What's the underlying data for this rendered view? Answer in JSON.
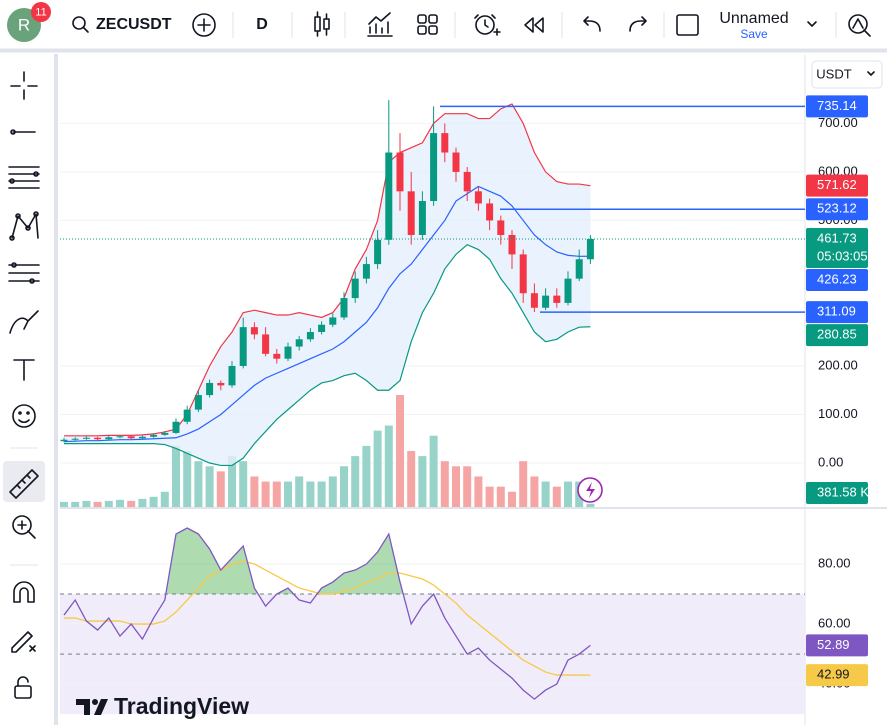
{
  "toolbar": {
    "avatar": "R",
    "badge": "11",
    "symbol": "ZECUSDT",
    "interval": "D",
    "layout_name": "Unnamed",
    "save": "Save"
  },
  "currency": "USDT",
  "logo": "TradingView",
  "chart_data": [
    {
      "type": "candlestick",
      "open": [
        45,
        48,
        50,
        52,
        49,
        53,
        55,
        51,
        54,
        58,
        62,
        85,
        110,
        140,
        165,
        160,
        200,
        280,
        265,
        225,
        215,
        240,
        255,
        270,
        285,
        300,
        340,
        380,
        410,
        460,
        640,
        560,
        470,
        540,
        680,
        640,
        600,
        560,
        535,
        500,
        470,
        430,
        350,
        320,
        345,
        330,
        380,
        420
      ],
      "high": [
        52,
        53,
        55,
        54,
        56,
        58,
        57,
        57,
        61,
        66,
        92,
        118,
        150,
        172,
        170,
        210,
        300,
        290,
        280,
        235,
        248,
        262,
        278,
        292,
        308,
        352,
        395,
        425,
        480,
        748,
        680,
        600,
        560,
        735.14,
        700,
        650,
        610,
        570,
        545,
        510,
        480,
        440,
        370,
        360,
        360,
        395,
        440,
        470
      ],
      "low": [
        43,
        46,
        48,
        47,
        47,
        51,
        49,
        50,
        52,
        56,
        60,
        80,
        105,
        135,
        150,
        155,
        195,
        255,
        220,
        205,
        210,
        232,
        250,
        265,
        280,
        295,
        330,
        370,
        400,
        450,
        520,
        450,
        460,
        530,
        620,
        580,
        540,
        520,
        480,
        450,
        400,
        330,
        311.09,
        315,
        320,
        325,
        375,
        410
      ],
      "close": [
        48,
        50,
        52,
        49,
        53,
        55,
        51,
        54,
        58,
        62,
        85,
        110,
        140,
        165,
        160,
        200,
        280,
        265,
        225,
        215,
        240,
        255,
        270,
        285,
        300,
        340,
        380,
        410,
        460,
        640,
        560,
        470,
        540,
        680,
        640,
        600,
        560,
        535,
        500,
        470,
        430,
        350,
        320,
        345,
        330,
        380,
        420,
        461.73
      ],
      "up_color": "#089981",
      "down_color": "#f23645",
      "bb_upper": [
        56,
        56,
        56,
        56,
        57,
        57,
        57,
        58,
        60,
        64,
        70,
        100,
        150,
        200,
        240,
        270,
        310,
        315,
        310,
        305,
        305,
        310,
        305,
        300,
        310,
        340,
        400,
        440,
        500,
        620,
        640,
        650,
        660,
        700,
        720,
        720,
        720,
        710,
        710,
        730,
        740,
        700,
        640,
        600,
        580,
        575,
        575,
        571.62
      ],
      "bb_middle": [
        44,
        45,
        46,
        46,
        47,
        48,
        48,
        49,
        50,
        51,
        52,
        60,
        70,
        85,
        100,
        120,
        140,
        160,
        175,
        185,
        195,
        205,
        215,
        225,
        235,
        250,
        270,
        290,
        320,
        360,
        390,
        410,
        440,
        470,
        500,
        540,
        555,
        570,
        560,
        550,
        530,
        500,
        470,
        450,
        435,
        428,
        426,
        426.23
      ],
      "bb_lower": [
        40,
        40,
        40,
        40,
        40,
        40,
        40,
        40,
        40,
        38,
        30,
        20,
        10,
        0,
        -5,
        -5,
        10,
        40,
        65,
        90,
        110,
        130,
        150,
        165,
        170,
        180,
        185,
        170,
        150,
        150,
        170,
        250,
        310,
        350,
        400,
        430,
        450,
        440,
        420,
        380,
        350,
        310,
        270,
        250,
        255,
        270,
        280,
        280.85
      ],
      "bb_colors": [
        "#f23645",
        "#2962ff",
        "#089981"
      ],
      "bb_fill": "#e3effd",
      "volume": {
        "values": [
          600,
          600,
          720,
          600,
          720,
          840,
          720,
          960,
          1200,
          1800,
          7200,
          6600,
          5400,
          4800,
          4200,
          6000,
          5400,
          3600,
          3000,
          3000,
          3000,
          3600,
          3000,
          3000,
          3600,
          4800,
          6000,
          7200,
          9000,
          9600,
          13200,
          6600,
          6000,
          8400,
          5400,
          4800,
          4800,
          3600,
          2400,
          2400,
          1800,
          5400,
          3600,
          3000,
          2400,
          3000,
          3000,
          381.58
        ],
        "last_label": "381.58 K",
        "up_color": "#98d3c9",
        "down_color": "#f5a6a4"
      },
      "horizontal_lines": [
        735.14,
        523.12,
        311.09
      ],
      "horizontal_line_color": "#2962ff",
      "countdown": "05:03:05",
      "ylim": [
        -90.7,
        841
      ],
      "yticks": [
        {
          "value": 700,
          "label": "700.00"
        },
        {
          "value": 600,
          "label": "600.00"
        },
        {
          "value": 500,
          "label": "500.00"
        },
        {
          "value": 200,
          "label": "200.00"
        },
        {
          "value": 100,
          "label": "100.00"
        },
        {
          "value": 0,
          "label": "0.00"
        }
      ],
      "grid": true
    },
    {
      "type": "line",
      "series": [
        {
          "color": "#7e57c2",
          "values": [
            63,
            68,
            61,
            58,
            62,
            56,
            60,
            55,
            62,
            68,
            90,
            92,
            90,
            85,
            78,
            82,
            86,
            72,
            66,
            70,
            72,
            68,
            67,
            72,
            74,
            77,
            78,
            80,
            84,
            90,
            74,
            60,
            66,
            70,
            62,
            56,
            50,
            52,
            48,
            45,
            42,
            38,
            35,
            38,
            40,
            48,
            50,
            52.89
          ]
        },
        {
          "color": "#f7c948",
          "values": [
            62,
            62,
            61,
            61,
            61,
            61,
            60,
            60,
            60,
            61,
            64,
            68,
            72,
            76,
            78,
            80,
            81,
            80,
            78,
            76,
            74,
            72,
            71,
            70,
            70,
            71,
            72,
            74,
            75,
            77,
            77,
            76,
            75,
            73,
            70,
            67,
            63,
            60,
            57,
            54,
            51,
            48,
            46,
            44,
            43,
            43,
            43,
            42.99
          ]
        }
      ],
      "band": [
        30,
        70
      ],
      "midline": 50,
      "band_color": "#f1ecfa",
      "overbought_fill": "#4caf50",
      "ylim": [
        29.7,
        98
      ],
      "yticks": [
        {
          "value": 80,
          "label": "80.00"
        },
        {
          "value": 60,
          "label": "60.00"
        },
        {
          "value": 40,
          "label": "40.00"
        }
      ],
      "grid": true
    }
  ]
}
